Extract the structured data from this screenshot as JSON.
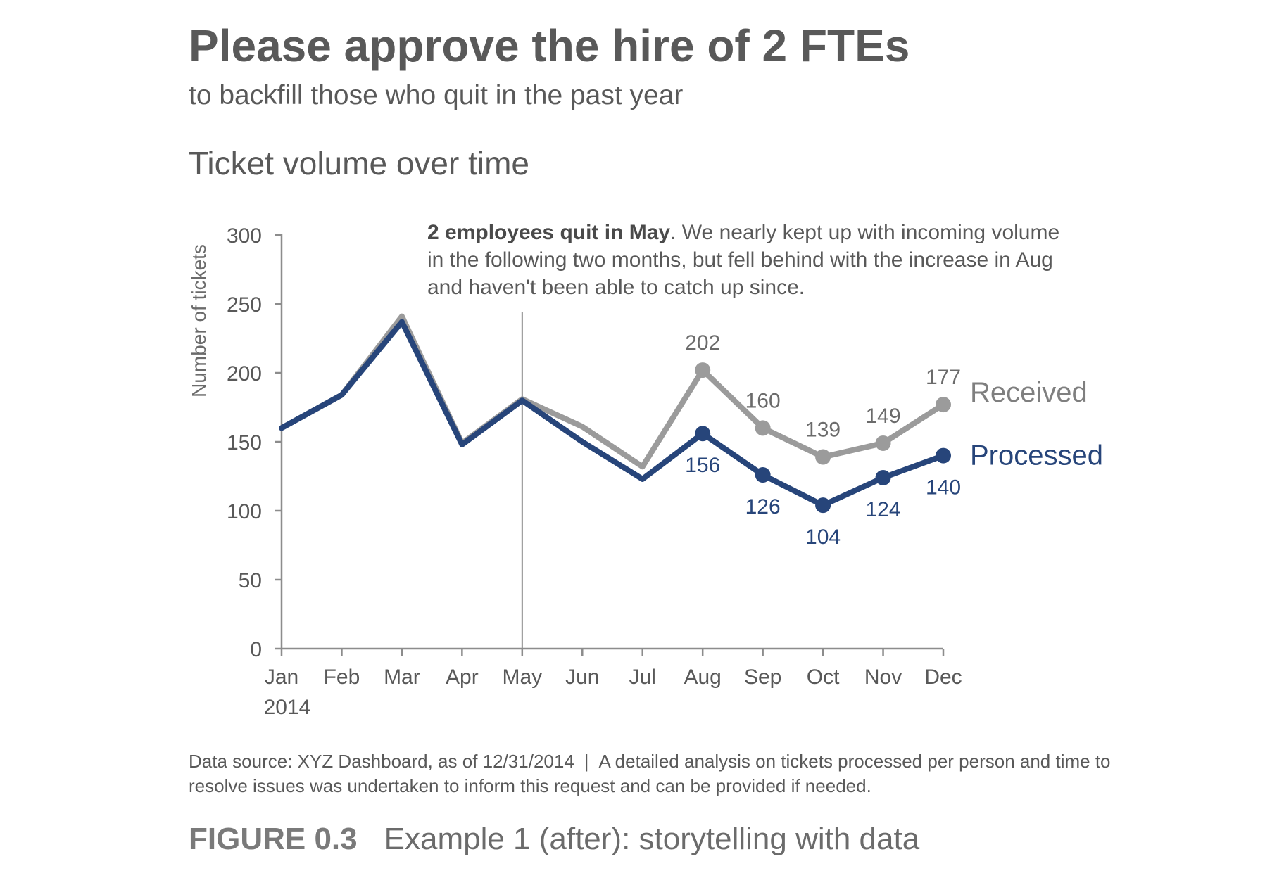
{
  "headline": "Please approve the hire of 2 FTEs",
  "subheadline": "to backfill those who quit in the past year",
  "footnote": {
    "source": "Data source: XYZ Dashboard, as of 12/31/2014",
    "separator": "|",
    "detail": "A detailed analysis on tickets processed per person and time to resolve issues was undertaken to inform this request and can be provided if needed."
  },
  "caption": {
    "figure_number": "FIGURE 0.3",
    "text": "Example 1 (after): storytelling with data"
  },
  "chart_data": {
    "type": "line",
    "title": "Ticket volume over time",
    "xlabel": "",
    "ylabel": "Number of tickets",
    "year_label": "2014",
    "categories": [
      "Jan",
      "Feb",
      "Mar",
      "Apr",
      "May",
      "Jun",
      "Jul",
      "Aug",
      "Sep",
      "Oct",
      "Nov",
      "Dec"
    ],
    "ylim": [
      0,
      300
    ],
    "yticks": [
      0,
      50,
      100,
      150,
      200,
      250,
      300
    ],
    "grid": false,
    "legend": "direct-labels-right",
    "series": [
      {
        "name": "Received",
        "color": "#9b9b9b",
        "values": [
          160,
          184,
          241,
          149,
          181,
          161,
          132,
          202,
          160,
          139,
          149,
          177
        ],
        "labeled_from": 7
      },
      {
        "name": "Processed",
        "color": "#27457a",
        "values": [
          160,
          184,
          237,
          148,
          180,
          150,
          123,
          156,
          126,
          104,
          124,
          140
        ],
        "labeled_from": 7
      }
    ],
    "annotation": {
      "at": "May",
      "bold": "2 employees quit in May",
      "text": ". We nearly kept up with incoming volume in the following two months, but fell behind with the increase in Aug and haven't been able to catch up since."
    }
  }
}
